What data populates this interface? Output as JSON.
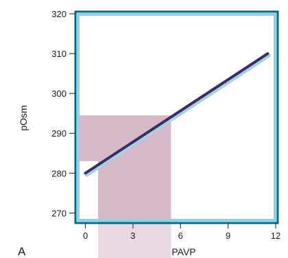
{
  "chart_data": {
    "type": "line",
    "panel_label": "A",
    "xlabel": "PAVP",
    "ylabel": "pOsm",
    "xlim": [
      -0.5,
      12
    ],
    "ylim": [
      268,
      320
    ],
    "x_ticks": [
      0,
      3,
      6,
      9,
      12
    ],
    "y_ticks": [
      270,
      280,
      290,
      300,
      310,
      320
    ],
    "x_tick_labels": [
      "0",
      "3",
      "6",
      "9",
      "12"
    ],
    "y_tick_labels": [
      "270",
      "280",
      "290",
      "300",
      "310",
      "320"
    ],
    "series": [
      {
        "x": [
          0,
          11.5
        ],
        "y": [
          280,
          310
        ]
      }
    ],
    "shaded_regions": [
      {
        "x": [
          -0.5,
          5.4
        ],
        "y": [
          283,
          294.5
        ]
      },
      {
        "x": [
          0.8,
          5.4
        ],
        "y": [
          268,
          294.5
        ]
      }
    ],
    "grid": false,
    "colors": {
      "line": "#3b2c5e",
      "line_shadow": "#a9cfe8",
      "frame": "#006b82",
      "frame_inner": "#8fd0e6",
      "shade": "#d6b9c8"
    }
  }
}
